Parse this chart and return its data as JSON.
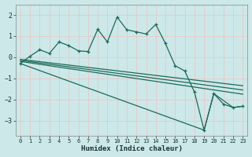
{
  "xlabel": "Humidex (Indice chaleur)",
  "bg_color": "#cce8e8",
  "grid_color": "#e8c8c8",
  "line_color": "#1a6b5a",
  "xlim": [
    -0.5,
    23.5
  ],
  "ylim": [
    -3.7,
    2.5
  ],
  "yticks": [
    -3,
    -2,
    -1,
    0,
    1,
    2
  ],
  "xticks": [
    0,
    1,
    2,
    3,
    4,
    5,
    6,
    7,
    8,
    9,
    10,
    11,
    12,
    13,
    14,
    15,
    16,
    17,
    18,
    19,
    20,
    21,
    22,
    23
  ],
  "line1_x": [
    0,
    1,
    2,
    3,
    4,
    5,
    6,
    7,
    8,
    9,
    10,
    11,
    12,
    13,
    14,
    15,
    16,
    17,
    18,
    19,
    20,
    21,
    22,
    23
  ],
  "line1_y": [
    -0.3,
    0.05,
    0.35,
    0.18,
    0.72,
    0.55,
    0.3,
    0.27,
    1.32,
    0.72,
    1.9,
    1.3,
    1.2,
    1.1,
    1.55,
    0.65,
    -0.4,
    -0.65,
    -1.65,
    -3.45,
    -1.72,
    -2.22,
    -2.38,
    -2.32
  ],
  "line3_x": [
    0,
    19,
    20,
    22,
    23
  ],
  "line3_y": [
    -0.3,
    -3.45,
    -1.72,
    -2.38,
    -2.32
  ],
  "line4_x": [
    0,
    23
  ],
  "line4_y": [
    -0.2,
    -1.75
  ],
  "line5_x": [
    0,
    23
  ],
  "line5_y": [
    -0.15,
    -1.55
  ],
  "line6_x": [
    0,
    23
  ],
  "line6_y": [
    -0.1,
    -1.35
  ]
}
